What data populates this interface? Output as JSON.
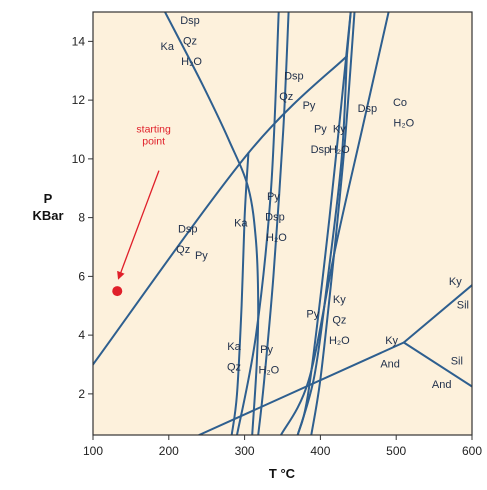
{
  "chart_data": {
    "type": "line",
    "title": "",
    "xlabel": "T °C",
    "ylabel": [
      "P",
      "KBar"
    ],
    "xlim": [
      100,
      600
    ],
    "ylim": [
      0.6,
      15
    ],
    "xticks": [
      100,
      200,
      300,
      400,
      500,
      600
    ],
    "yticks": [
      2,
      4,
      6,
      8,
      10,
      12,
      14
    ],
    "grid": false,
    "colors": {
      "background": "#fdf1dc",
      "line": "#2e5f8f",
      "frame": "#333333",
      "annotation": "#e0202a"
    },
    "series": [
      {
        "points": [
          [
            100,
            3.0
          ],
          [
            305,
            10.2
          ],
          [
            435,
            13.5
          ]
        ]
      },
      {
        "points": [
          [
            195,
            15.0
          ],
          [
            245,
            12.5
          ],
          [
            280,
            10.6
          ],
          [
            305,
            9.0
          ],
          [
            315,
            7.2
          ],
          [
            318,
            5.0
          ],
          [
            316,
            3.0
          ],
          [
            310,
            0.6
          ]
        ]
      },
      {
        "points": [
          [
            305,
            10.2
          ],
          [
            300,
            8.0
          ],
          [
            296,
            5.0
          ],
          [
            290,
            2.0
          ],
          [
            283,
            0.6
          ]
        ]
      },
      {
        "points": [
          [
            435,
            13.5
          ],
          [
            428,
            10.0
          ],
          [
            410,
            6.0
          ],
          [
            392,
            2.6
          ],
          [
            370,
            0.6
          ]
        ]
      },
      {
        "points": [
          [
            345,
            15.0
          ],
          [
            335,
            9.0
          ],
          [
            315,
            4.0
          ],
          [
            290,
            0.6
          ]
        ]
      },
      {
        "points": [
          [
            358,
            15.0
          ],
          [
            351,
            11.0
          ],
          [
            338,
            6.0
          ],
          [
            326,
            2.5
          ],
          [
            318,
            0.6
          ]
        ]
      },
      {
        "points": [
          [
            440,
            15.0
          ],
          [
            412,
            8.0
          ],
          [
            385,
            2.2
          ],
          [
            370,
            0.6
          ]
        ]
      },
      {
        "points": [
          [
            445,
            15.0
          ],
          [
            432,
            10.5
          ],
          [
            415,
            6.0
          ],
          [
            400,
            2.5
          ],
          [
            388,
            0.6
          ]
        ]
      },
      {
        "points": [
          [
            440,
            15.0
          ],
          [
            435,
            13.5
          ]
        ]
      },
      {
        "points": [
          [
            240,
            0.6
          ],
          [
            510,
            3.75
          ]
        ]
      },
      {
        "points": [
          [
            510,
            3.75
          ],
          [
            600,
            5.7
          ]
        ]
      },
      {
        "points": [
          [
            510,
            3.75
          ],
          [
            600,
            2.25
          ]
        ]
      },
      {
        "points": [
          [
            490,
            15.0
          ],
          [
            455,
            11.0
          ],
          [
            420,
            7.0
          ],
          [
            385,
            2.5
          ],
          [
            348,
            0.6
          ]
        ]
      }
    ],
    "labels": [
      {
        "text": "Ka",
        "x": 198,
        "y": 13.7
      },
      {
        "text": "Dsp",
        "x": 228,
        "y": 14.6
      },
      {
        "text": "Qz",
        "x": 228,
        "y": 13.9
      },
      {
        "text": "H₂O",
        "x": 230,
        "y": 13.2
      },
      {
        "text": "Dsp",
        "x": 365,
        "y": 12.7
      },
      {
        "text": "Qz",
        "x": 355,
        "y": 12.0
      },
      {
        "text": "Py",
        "x": 385,
        "y": 11.7
      },
      {
        "text": "Py",
        "x": 400,
        "y": 10.9
      },
      {
        "text": "Dsp",
        "x": 400,
        "y": 10.2
      },
      {
        "text": "Ky",
        "x": 425,
        "y": 10.9
      },
      {
        "text": "H₂O",
        "x": 425,
        "y": 10.2
      },
      {
        "text": "Dsp",
        "x": 462,
        "y": 11.6
      },
      {
        "text": "Co",
        "x": 505,
        "y": 11.8
      },
      {
        "text": "H₂O",
        "x": 510,
        "y": 11.1
      },
      {
        "text": "Py",
        "x": 338,
        "y": 8.6
      },
      {
        "text": "Dsp",
        "x": 340,
        "y": 7.9
      },
      {
        "text": "H₂O",
        "x": 342,
        "y": 7.2
      },
      {
        "text": "Ka",
        "x": 295,
        "y": 7.7
      },
      {
        "text": "Dsp",
        "x": 225,
        "y": 7.5
      },
      {
        "text": "Qz",
        "x": 219,
        "y": 6.8
      },
      {
        "text": "Py",
        "x": 243,
        "y": 6.6
      },
      {
        "text": "Py",
        "x": 390,
        "y": 4.6
      },
      {
        "text": "Ky",
        "x": 425,
        "y": 5.1
      },
      {
        "text": "Qz",
        "x": 425,
        "y": 4.4
      },
      {
        "text": "H₂O",
        "x": 425,
        "y": 3.7
      },
      {
        "text": "Ka",
        "x": 286,
        "y": 3.5
      },
      {
        "text": "Qz",
        "x": 286,
        "y": 2.8
      },
      {
        "text": "Py",
        "x": 329,
        "y": 3.4
      },
      {
        "text": "H₂O",
        "x": 332,
        "y": 2.7
      },
      {
        "text": "Ky",
        "x": 494,
        "y": 3.7
      },
      {
        "text": "And",
        "x": 492,
        "y": 2.9
      },
      {
        "text": "Ky",
        "x": 578,
        "y": 5.7
      },
      {
        "text": "Sil",
        "x": 588,
        "y": 4.9
      },
      {
        "text": "Sil",
        "x": 580,
        "y": 3.0
      },
      {
        "text": "And",
        "x": 560,
        "y": 2.2
      }
    ],
    "annotation": {
      "lines": [
        "starting",
        "point"
      ],
      "text_x": 180,
      "text_y": 10.9,
      "arrow_from": [
        187,
        9.6
      ],
      "arrow_to": [
        134,
        5.95
      ],
      "point": [
        132,
        5.5
      ]
    }
  }
}
